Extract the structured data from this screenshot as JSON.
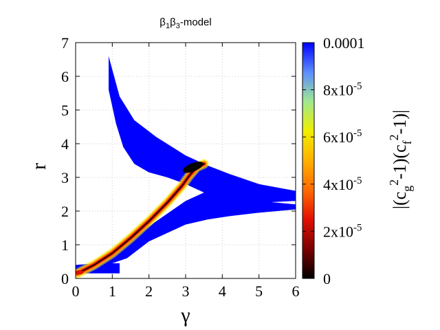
{
  "chart_data": {
    "type": "heatmap",
    "title": "β₁β₃-model",
    "title_parts": {
      "b1": "β",
      "s1": "1",
      "b3": "β",
      "s3": "3",
      "rest": "-model"
    },
    "xlabel": "γ",
    "ylabel": "r",
    "xlim": [
      0,
      6
    ],
    "ylim": [
      0,
      7
    ],
    "x_ticks": [
      0,
      1,
      2,
      3,
      4,
      5,
      6
    ],
    "y_ticks": [
      0,
      1,
      2,
      3,
      4,
      5,
      6,
      7
    ],
    "grid": true,
    "colorbar": {
      "label": "|(c_g^2-1)(c_f^2-1)|",
      "label_parts": {
        "p1": "|(c",
        "sub1": "g",
        "sup1": "2",
        "p2": "-1)(c",
        "sub2": "f",
        "sup2": "2",
        "p3": "-1)|"
      },
      "range": [
        0,
        0.0001
      ],
      "ticks": [
        {
          "value": 0.0001,
          "label": "0.0001"
        },
        {
          "value": 8e-05,
          "label_base": "8x10",
          "label_exp": "-5"
        },
        {
          "value": 6e-05,
          "label_base": "6x10",
          "label_exp": "-5"
        },
        {
          "value": 4e-05,
          "label_base": "4x10",
          "label_exp": "-5"
        },
        {
          "value": 2e-05,
          "label_base": "2x10",
          "label_exp": "-5"
        },
        {
          "value": 0,
          "label": "0"
        }
      ],
      "palette": [
        "#000000",
        "#7a0000",
        "#e01000",
        "#ff6a00",
        "#ffb000",
        "#f0ee00",
        "#a0e890",
        "#5c8cff",
        "#0000ff"
      ]
    },
    "regions": {
      "saturated_color": "#0000ff",
      "upper_branch": [
        [
          0.9,
          6.6
        ],
        [
          1.0,
          6.2
        ],
        [
          1.2,
          5.4
        ],
        [
          1.6,
          4.7
        ],
        [
          2.2,
          4.2
        ],
        [
          3.0,
          3.65
        ],
        [
          3.6,
          3.35
        ],
        [
          4.2,
          3.1
        ],
        [
          5.0,
          2.8
        ],
        [
          6.0,
          2.6
        ],
        [
          6.0,
          2.3
        ],
        [
          5.0,
          2.25
        ],
        [
          4.2,
          2.35
        ],
        [
          3.6,
          2.5
        ],
        [
          3.0,
          2.8
        ],
        [
          2.5,
          3.0
        ],
        [
          2.0,
          3.15
        ],
        [
          1.6,
          3.4
        ],
        [
          1.3,
          3.9
        ],
        [
          1.1,
          4.6
        ],
        [
          0.9,
          5.6
        ]
      ],
      "lower_band": [
        [
          0.1,
          0.2
        ],
        [
          1.0,
          0.7
        ],
        [
          2.0,
          1.55
        ],
        [
          3.0,
          2.3
        ],
        [
          3.6,
          2.6
        ],
        [
          4.2,
          2.55
        ],
        [
          5.0,
          2.3
        ],
        [
          6.0,
          2.2
        ],
        [
          6.0,
          2.05
        ],
        [
          5.0,
          1.95
        ],
        [
          4.2,
          1.85
        ],
        [
          3.6,
          1.75
        ],
        [
          3.0,
          1.6
        ],
        [
          2.0,
          1.1
        ],
        [
          1.4,
          0.6
        ],
        [
          1.0,
          0.45
        ],
        [
          0.5,
          0.2
        ]
      ],
      "base_block": [
        [
          0.0,
          0.15
        ],
        [
          1.2,
          0.15
        ],
        [
          1.2,
          0.45
        ],
        [
          0.6,
          0.45
        ],
        [
          0.0,
          0.4
        ]
      ],
      "ridge_points": [
        [
          0.05,
          0.15
        ],
        [
          0.5,
          0.4
        ],
        [
          1.0,
          0.75
        ],
        [
          1.5,
          1.2
        ],
        [
          2.0,
          1.7
        ],
        [
          2.5,
          2.25
        ],
        [
          2.9,
          2.75
        ],
        [
          3.1,
          3.05
        ],
        [
          3.3,
          3.3
        ],
        [
          3.5,
          3.4
        ]
      ]
    }
  }
}
